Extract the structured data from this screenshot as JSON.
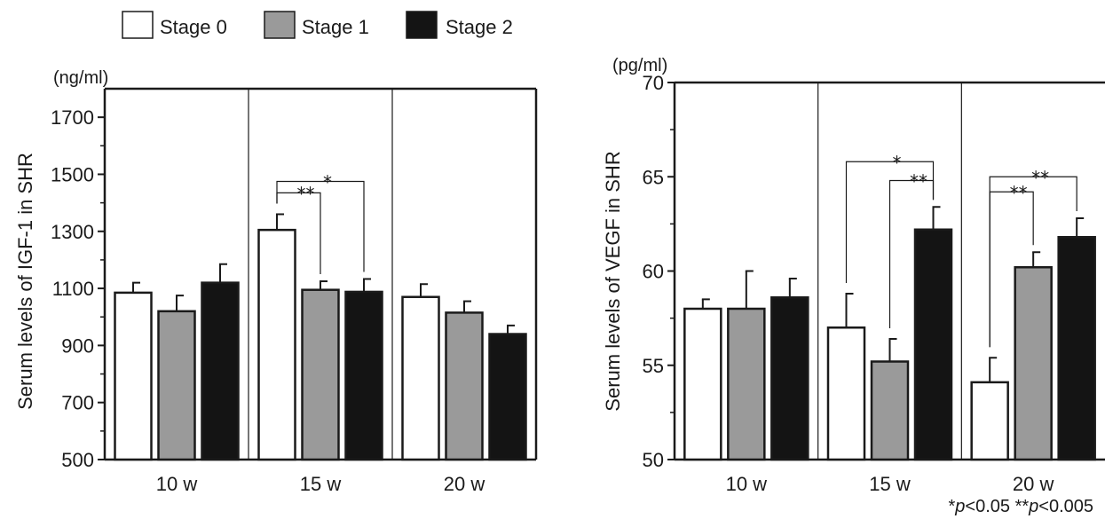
{
  "legend": {
    "items": [
      {
        "label": "Stage 0",
        "color": "#ffffff"
      },
      {
        "label": "Stage 1",
        "color": "#9a9a9a"
      },
      {
        "label": "Stage 2",
        "color": "#141414"
      }
    ]
  },
  "footnote": {
    "p1_mark": "*",
    "p1_italic": "p",
    "p1_rest": "<0.05 ",
    "p2_mark": "**",
    "p2_italic": "p",
    "p2_rest": "<0.005"
  },
  "chart_data": [
    {
      "type": "bar",
      "ylabel": "Serum levels of IGF-1 in SHR",
      "unit": "(ng/ml)",
      "ylim": [
        500,
        1800
      ],
      "yticks": [
        500,
        700,
        900,
        1100,
        1300,
        1500,
        1700
      ],
      "categories": [
        "10 w",
        "15 w",
        "20 w"
      ],
      "series": [
        {
          "name": "Stage 0",
          "values": [
            1085,
            1305,
            1070
          ],
          "errors": [
            35,
            55,
            45
          ]
        },
        {
          "name": "Stage 1",
          "values": [
            1020,
            1095,
            1015
          ],
          "errors": [
            55,
            30,
            40
          ]
        },
        {
          "name": "Stage 2",
          "values": [
            1120,
            1088,
            940
          ],
          "errors": [
            65,
            45,
            30
          ]
        }
      ],
      "annotations": [
        {
          "group": 1,
          "from": 0,
          "to": 1,
          "label": "**",
          "y": 1435
        },
        {
          "group": 1,
          "from": 0,
          "to": 2,
          "label": "*",
          "y": 1475
        }
      ]
    },
    {
      "type": "bar",
      "ylabel": "Serum levels of VEGF in SHR",
      "unit": "(pg/ml)",
      "ylim": [
        50,
        70
      ],
      "yticks": [
        50,
        55,
        60,
        65,
        70
      ],
      "categories": [
        "10 w",
        "15 w",
        "20 w"
      ],
      "series": [
        {
          "name": "Stage 0",
          "values": [
            58.0,
            57.0,
            54.1
          ],
          "errors": [
            0.5,
            1.8,
            1.3
          ]
        },
        {
          "name": "Stage 1",
          "values": [
            58.0,
            55.2,
            60.2
          ],
          "errors": [
            2.0,
            1.2,
            0.8
          ]
        },
        {
          "name": "Stage 2",
          "values": [
            58.6,
            62.2,
            61.8
          ],
          "errors": [
            1.0,
            1.2,
            1.0
          ]
        }
      ],
      "annotations": [
        {
          "group": 1,
          "from": 1,
          "to": 2,
          "label": "**",
          "y": 64.8
        },
        {
          "group": 1,
          "from": 0,
          "to": 2,
          "label": "*",
          "y": 65.8
        },
        {
          "group": 2,
          "from": 0,
          "to": 1,
          "label": "**",
          "y": 64.2
        },
        {
          "group": 2,
          "from": 0,
          "to": 2,
          "label": "**",
          "y": 65.0
        }
      ]
    }
  ]
}
